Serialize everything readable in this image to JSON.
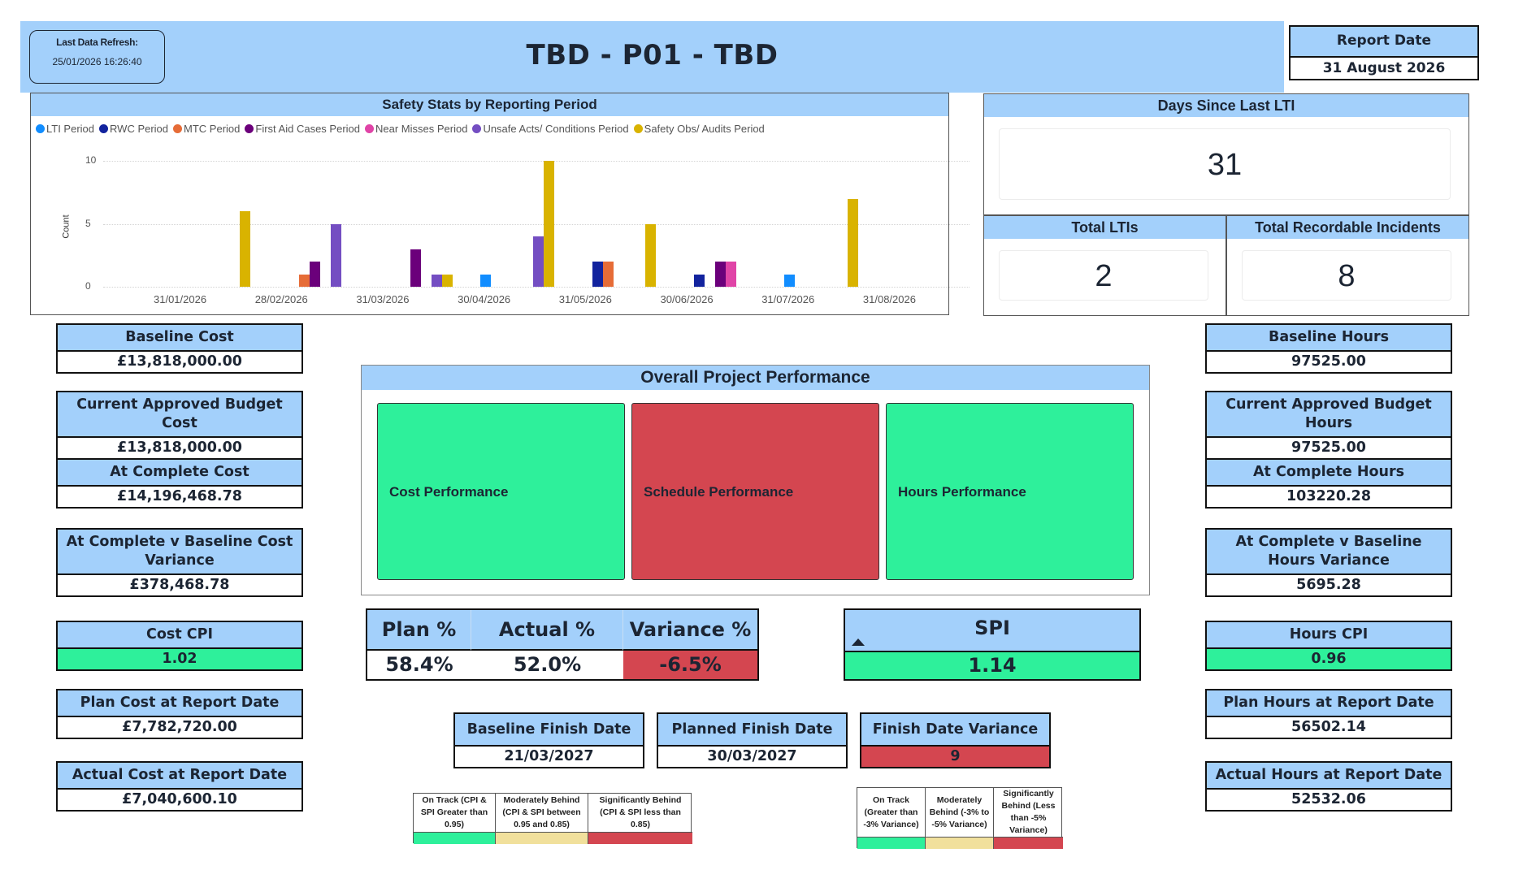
{
  "header": {
    "title": "TBD - P01 - TBD",
    "last_refresh_label": "Last Data Refresh:",
    "last_refresh_value": "25/01/2026 16:26:40",
    "report_date_label": "Report Date",
    "report_date_value": "31 August 2026"
  },
  "colors": {
    "header_blue": "#a3d0fb",
    "on_track_green": "#2ef09b",
    "behind_red": "#d44650",
    "moderate_yellow": "#f1e09c"
  },
  "chart_data": {
    "type": "bar",
    "title": "Safety Stats by Reporting Period",
    "xlabel": "",
    "ylabel": "Count",
    "ylim": [
      0,
      10
    ],
    "yticks": [
      0,
      5,
      10
    ],
    "grid": true,
    "legend_position": "top-left",
    "categories": [
      "31/01/2026",
      "28/02/2026",
      "31/03/2026",
      "30/04/2026",
      "31/05/2026",
      "30/06/2026",
      "31/07/2026",
      "31/08/2026"
    ],
    "series": [
      {
        "name": "LTI Period",
        "color": "#118dff",
        "values": [
          0,
          0,
          0,
          1,
          0,
          0,
          1,
          0
        ]
      },
      {
        "name": "RWC Period",
        "color": "#12239e",
        "values": [
          0,
          0,
          0,
          0,
          2,
          1,
          0,
          0
        ]
      },
      {
        "name": "MTC Period",
        "color": "#e66c37",
        "values": [
          0,
          1,
          0,
          0,
          2,
          0,
          0,
          0
        ]
      },
      {
        "name": "First Aid Cases Period",
        "color": "#6b007b",
        "values": [
          0,
          2,
          3,
          0,
          0,
          2,
          0,
          0
        ]
      },
      {
        "name": "Near Misses Period",
        "color": "#e044a7",
        "values": [
          0,
          0,
          0,
          0,
          0,
          2,
          0,
          0
        ]
      },
      {
        "name": "Unsafe Acts/ Conditions Period",
        "color": "#744ec2",
        "values": [
          0,
          5,
          1,
          4,
          0,
          0,
          0,
          0
        ]
      },
      {
        "name": "Safety Obs/ Audits Period",
        "color": "#d9b300",
        "values": [
          6,
          0,
          1,
          10,
          5,
          0,
          7,
          0
        ]
      }
    ]
  },
  "safety": {
    "days_since_lti_label": "Days Since Last LTI",
    "days_since_lti_value": "31",
    "total_ltis_label": "Total LTIs",
    "total_ltis_value": "2",
    "total_recordable_label": "Total Recordable Incidents",
    "total_recordable_value": "8"
  },
  "cost_kpis": [
    {
      "label": "Baseline Cost",
      "value": "£13,818,000.00",
      "status": "neutral"
    },
    {
      "label": "Current Approved Budget Cost",
      "value": "£13,818,000.00",
      "status": "neutral"
    },
    {
      "label": "At Complete Cost",
      "value": "£14,196,468.78",
      "status": "neutral"
    },
    {
      "label": "At Complete v Baseline Cost Variance",
      "value": "£378,468.78",
      "status": "neutral"
    },
    {
      "label": "Cost CPI",
      "value": "1.02",
      "status": "green"
    },
    {
      "label": "Plan Cost at Report Date",
      "value": "£7,782,720.00",
      "status": "neutral"
    },
    {
      "label": "Actual Cost at Report Date",
      "value": "£7,040,600.10",
      "status": "neutral"
    }
  ],
  "hours_kpis": [
    {
      "label": "Baseline Hours",
      "value": "97525.00",
      "status": "neutral"
    },
    {
      "label": "Current Approved Budget Hours",
      "value": "97525.00",
      "status": "neutral"
    },
    {
      "label": "At Complete Hours",
      "value": "103220.28",
      "status": "neutral"
    },
    {
      "label": "At Complete v Baseline Hours Variance",
      "value": "5695.28",
      "status": "neutral"
    },
    {
      "label": "Hours CPI",
      "value": "0.96",
      "status": "green"
    },
    {
      "label": "Plan Hours at Report Date",
      "value": "56502.14",
      "status": "neutral"
    },
    {
      "label": "Actual Hours at Report Date",
      "value": "52532.06",
      "status": "neutral"
    }
  ],
  "overall": {
    "title": "Overall Project Performance",
    "tiles": [
      {
        "label": "Cost Performance",
        "status": "green"
      },
      {
        "label": "Schedule Performance",
        "status": "red"
      },
      {
        "label": "Hours Performance",
        "status": "green"
      }
    ]
  },
  "progress": {
    "plan_label": "Plan %",
    "plan_value": "58.4%",
    "actual_label": "Actual %",
    "actual_value": "52.0%",
    "variance_label": "Variance %",
    "variance_value": "-6.5%",
    "variance_status": "red"
  },
  "spi": {
    "label": "SPI",
    "value": "1.14",
    "status": "green",
    "indicator": "up-triangle"
  },
  "finish": {
    "baseline_label": "Baseline Finish Date",
    "baseline_value": "21/03/2027",
    "planned_label": "Planned Finish Date",
    "planned_value": "30/03/2027",
    "variance_label": "Finish Date Variance",
    "variance_value": "9",
    "variance_status": "red"
  },
  "legend_cpi_spi": [
    {
      "text": "On Track (CPI & SPI Greater than 0.95)",
      "color": "#2ef09b"
    },
    {
      "text": "Moderately Behind (CPI & SPI between 0.95 and 0.85)",
      "color": "#f1e09c"
    },
    {
      "text": "Significantly Behind (CPI & SPI less than 0.85)",
      "color": "#d44650"
    }
  ],
  "legend_variance": [
    {
      "text": "On Track (Greater than -3% Variance)",
      "color": "#2ef09b"
    },
    {
      "text": "Moderately Behind (-3% to -5% Variance)",
      "color": "#f1e09c"
    },
    {
      "text": "Significantly Behind (Less than -5% Variance)",
      "color": "#d44650"
    }
  ]
}
